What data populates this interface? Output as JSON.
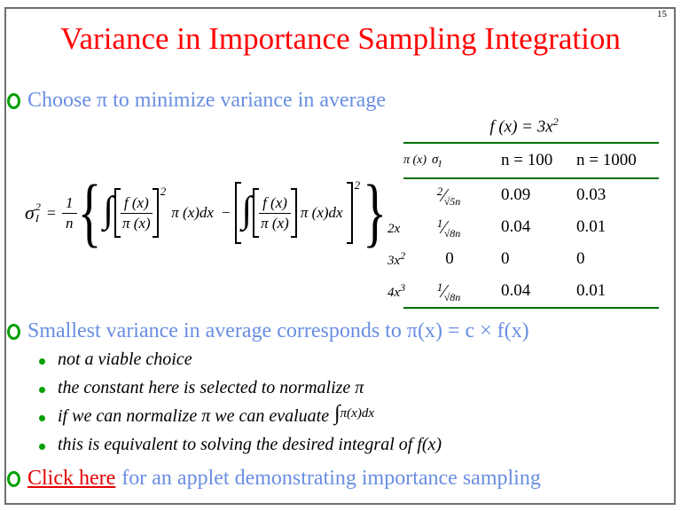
{
  "page_number": "15",
  "title": "Variance in Importance Sampling Integration",
  "bullet1": {
    "text": "Choose π to minimize variance in average"
  },
  "bullet2": {
    "text": "Smallest variance in average corresponds to π(x) = c × f(x)"
  },
  "bullet3": {
    "link_text": "Click here",
    "rest_text": "for an applet demonstrating importance sampling"
  },
  "sub_bullets": [
    "not a viable choice",
    "the constant here is selected to normalize π",
    "if we can normalize π we can evaluate",
    "this is equivalent to solving the desired integral of f(x)"
  ],
  "sub_bullet_math": {
    "integral": "∫",
    "rest": "π(x)dx"
  },
  "formula": {
    "sigma": "σ",
    "sigma_sup": "2",
    "sigma_sub": "I",
    "equals": "=",
    "frac_num": "1",
    "frac_den": "n",
    "lbrace": "{",
    "rbrace": "}",
    "integral": "∫",
    "f_num": "f (x)",
    "f_den": "π (x)",
    "sup2": "2",
    "pixdx": "π (x)dx",
    "minus": "−"
  },
  "table": {
    "title_base": "f (x) = 3x",
    "title_sup": "2",
    "header": {
      "pi": "π (x)",
      "sigma": "σ",
      "sigma_sub": "I",
      "n100": "n = 100",
      "n1000": "n = 1000"
    },
    "rows": [
      {
        "pi_base": "",
        "pi_sup": "",
        "sigma_num": "2",
        "sigma_slash": "⁄",
        "sigma_den": "√5n",
        "n100": "0.09",
        "n1000": "0.03"
      },
      {
        "pi_base": "2x",
        "pi_sup": "",
        "sigma_num": "1",
        "sigma_slash": "⁄",
        "sigma_den": "√8n",
        "n100": "0.04",
        "n1000": "0.01"
      },
      {
        "pi_base": "3x",
        "pi_sup": "2",
        "sigma_plain": "0",
        "n100": "0",
        "n1000": "0"
      },
      {
        "pi_base": "4x",
        "pi_sup": "3",
        "sigma_num": "1",
        "sigma_slash": "⁄",
        "sigma_den": "√8n",
        "n100": "0.04",
        "n1000": "0.01"
      }
    ]
  },
  "colors": {
    "title_red": "#ff0000",
    "body_blue": "#698ee3",
    "bullet_green": "#00a000",
    "table_line_green": "#007000",
    "link_red": "#e60000",
    "border_gray": "#6e6e6e"
  }
}
